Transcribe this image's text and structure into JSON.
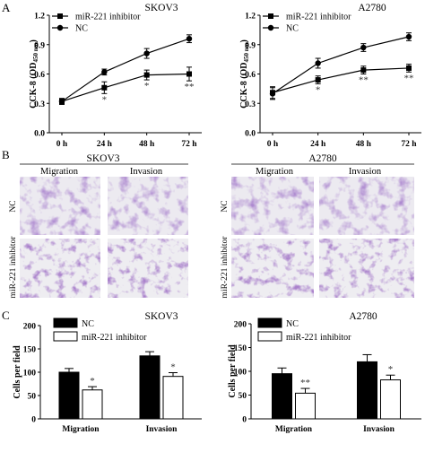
{
  "panels": {
    "a": "A",
    "b": "B",
    "c": "C"
  },
  "panel_b": {
    "cell_lines": [
      "SKOV3",
      "A2780"
    ],
    "columns": [
      "Migration",
      "Invasion"
    ],
    "rows": [
      "NC",
      "miR-221 inhibitor"
    ],
    "stain_color": "#6a3fa0"
  },
  "colors": {
    "black": "#000000",
    "white": "#ffffff",
    "stain": "#6a3fa0"
  },
  "chart_data": [
    {
      "type": "line",
      "title": "SKOV3",
      "ylabel": "CCK-8 (OD450 nm)",
      "categories": [
        "0 h",
        "24 h",
        "48 h",
        "72 h"
      ],
      "ylim": [
        0.0,
        1.2
      ],
      "yticks": [
        "0.0",
        "0.3",
        "0.6",
        "0.9",
        "1.2"
      ],
      "legend_position": "top-left",
      "series": [
        {
          "name": "miR-221 inhibitor",
          "marker": "square",
          "values": [
            0.32,
            0.46,
            0.59,
            0.6
          ],
          "errors": [
            0.03,
            0.06,
            0.05,
            0.07
          ],
          "significance": [
            "",
            "*",
            "*",
            "**"
          ]
        },
        {
          "name": "NC",
          "marker": "circle",
          "values": [
            0.32,
            0.62,
            0.81,
            0.96
          ],
          "errors": [
            0.03,
            0.03,
            0.05,
            0.04
          ],
          "significance": [
            "",
            "",
            "",
            ""
          ]
        }
      ]
    },
    {
      "type": "line",
      "title": "A2780",
      "ylabel": "CCK-8 (OD450 nm)",
      "categories": [
        "0 h",
        "24 h",
        "48 h",
        "72 h"
      ],
      "ylim": [
        0.0,
        1.2
      ],
      "yticks": [
        "0.0",
        "0.3",
        "0.6",
        "0.9",
        "1.2"
      ],
      "legend_position": "top-left",
      "series": [
        {
          "name": "miR-221 inhibitor",
          "marker": "square",
          "values": [
            0.41,
            0.54,
            0.64,
            0.66
          ],
          "errors": [
            0.06,
            0.04,
            0.04,
            0.04
          ],
          "significance": [
            "",
            "*",
            "**",
            "**"
          ]
        },
        {
          "name": "NC",
          "marker": "circle",
          "values": [
            0.4,
            0.71,
            0.87,
            0.98
          ],
          "errors": [
            0.06,
            0.05,
            0.04,
            0.04
          ],
          "significance": [
            "",
            "",
            "",
            ""
          ]
        }
      ]
    },
    {
      "type": "bar",
      "title": "SKOV3",
      "ylabel": "Cells per field",
      "categories": [
        "Migration",
        "Invasion"
      ],
      "ylim": [
        0,
        200
      ],
      "yticks": [
        "0",
        "50",
        "100",
        "150",
        "200"
      ],
      "legend_position": "top-left",
      "series": [
        {
          "name": "NC",
          "fill": "#000000",
          "values": [
            100,
            135
          ],
          "errors": [
            8,
            9
          ],
          "significance": [
            "",
            ""
          ]
        },
        {
          "name": "miR-221 inhibitor",
          "fill": "#ffffff",
          "values": [
            62,
            91
          ],
          "errors": [
            7,
            8
          ],
          "significance": [
            "*",
            "*"
          ]
        }
      ]
    },
    {
      "type": "bar",
      "title": "A2780",
      "ylabel": "Cells per field",
      "categories": [
        "Migration",
        "Invasion"
      ],
      "ylim": [
        0,
        200
      ],
      "yticks": [
        "0",
        "50",
        "100",
        "150",
        "200"
      ],
      "legend_position": "top-left",
      "series": [
        {
          "name": "NC",
          "fill": "#000000",
          "values": [
            95,
            120
          ],
          "errors": [
            12,
            15
          ],
          "significance": [
            "",
            ""
          ]
        },
        {
          "name": "miR-221 inhibitor",
          "fill": "#ffffff",
          "values": [
            54,
            82
          ],
          "errors": [
            10,
            10
          ],
          "significance": [
            "**",
            "*"
          ]
        }
      ]
    }
  ]
}
